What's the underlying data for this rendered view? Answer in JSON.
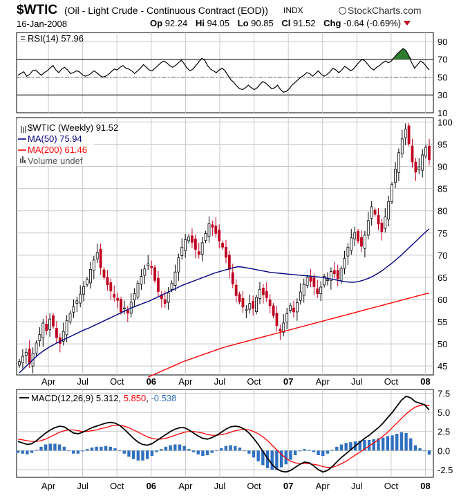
{
  "header": {
    "symbol": "$WTIC",
    "full_name": "(Oil - Light Crude - Continuous Contract (EOD))",
    "exchange": "INDX",
    "logo": "StockCharts.com",
    "date": "16-Jan-2008",
    "open_label": "Op",
    "open": "92.24",
    "high_label": "Hi",
    "high": "94.05",
    "low_label": "Lo",
    "low": "90.85",
    "close_label": "Cl",
    "close": "91.52",
    "change_label": "Chg",
    "change": "-0.64 (-0.69%)",
    "change_color": "#c00020"
  },
  "chart_data": [
    {
      "type": "line",
      "panel": "rsi",
      "legend": {
        "name": "RSI(14)",
        "value": "57.96"
      },
      "ylim": [
        10,
        100
      ],
      "ticks": [
        "90",
        "70",
        "50",
        "30",
        "10"
      ],
      "levels": [
        70,
        50,
        30
      ],
      "values": [
        52,
        54,
        56,
        51,
        53,
        57,
        58,
        55,
        52,
        55,
        57,
        60,
        63,
        58,
        55,
        59,
        61,
        58,
        54,
        55,
        57,
        56,
        53,
        51,
        52,
        54,
        57,
        55,
        52,
        50,
        51,
        53,
        56,
        59,
        58,
        61,
        63,
        60,
        59,
        57,
        54,
        57,
        60,
        64,
        61,
        58,
        57,
        60,
        63,
        66,
        68,
        66,
        63,
        61,
        63,
        66,
        69,
        65,
        60,
        57,
        59,
        63,
        67,
        71,
        69,
        63,
        59,
        57,
        55,
        58,
        60,
        57,
        52,
        47,
        44,
        40,
        37,
        36,
        38,
        41,
        38,
        36,
        38,
        42,
        45,
        43,
        40,
        37,
        38,
        41,
        36,
        33,
        34,
        37,
        41,
        44,
        47,
        50,
        52,
        55,
        54,
        51,
        54,
        57,
        53,
        51,
        53,
        56,
        60,
        58,
        55,
        58,
        62,
        60,
        57,
        59,
        63,
        67,
        70,
        68,
        64,
        60,
        58,
        61,
        63,
        66,
        68,
        66,
        68,
        72,
        76,
        79,
        82,
        80,
        74,
        66,
        60,
        64,
        68,
        66,
        62,
        58
      ],
      "colors": {
        "line": "#000000",
        "overbought_fill": "#2e7d32"
      }
    },
    {
      "type": "candlestick",
      "panel": "price",
      "legend": [
        {
          "name": "$WTIC (Weekly)",
          "value": "91.52",
          "color": "#000000"
        },
        {
          "name": "MA(50)",
          "value": "75.94",
          "color": "#000080"
        },
        {
          "name": "MA(200)",
          "value": "61.46",
          "color": "#ff0000"
        },
        {
          "name": "Volume",
          "value": "undef",
          "color": "#555555"
        }
      ],
      "ylim": [
        43,
        101
      ],
      "ticks": [
        "100",
        "95",
        "90",
        "85",
        "80",
        "75",
        "70",
        "65",
        "60",
        "55",
        "50",
        "45"
      ],
      "closes": [
        46.0,
        47.2,
        48.1,
        45.5,
        47.9,
        50.2,
        52.1,
        54.7,
        53.0,
        55.6,
        54.0,
        51.4,
        50.1,
        52.8,
        55.2,
        56.9,
        58.4,
        59.7,
        61.2,
        62.9,
        64.5,
        66.8,
        68.9,
        70.6,
        67.2,
        65.0,
        63.3,
        61.9,
        60.5,
        59.8,
        57.2,
        58.1,
        56.9,
        59.4,
        61.3,
        63.7,
        65.2,
        66.9,
        68.0,
        67.2,
        64.3,
        61.8,
        60.2,
        59.1,
        61.5,
        63.7,
        66.2,
        69.4,
        71.8,
        73.5,
        74.1,
        72.9,
        71.3,
        70.2,
        72.8,
        74.9,
        77.1,
        76.3,
        74.9,
        73.2,
        71.8,
        69.5,
        66.8,
        63.5,
        60.9,
        59.5,
        58.3,
        57.8,
        59.1,
        58.0,
        60.5,
        62.3,
        61.1,
        60.4,
        58.6,
        56.4,
        54.1,
        52.9,
        54.7,
        56.8,
        58.6,
        57.2,
        59.3,
        61.7,
        63.4,
        65.0,
        64.1,
        62.9,
        61.3,
        62.8,
        65.2,
        64.5,
        66.3,
        65.8,
        64.7,
        67.0,
        69.3,
        71.8,
        73.9,
        75.1,
        73.2,
        72.0,
        74.5,
        77.8,
        80.9,
        79.2,
        77.0,
        75.3,
        78.6,
        82.1,
        85.9,
        89.4,
        93.1,
        96.2,
        98.4,
        95.1,
        91.0,
        88.7,
        89.9,
        92.6,
        94.3,
        91.5
      ],
      "ma50": {
        "start": 0,
        "values": [
          43.5,
          44.5,
          45.5,
          46.5,
          47.5,
          48.3,
          49.0,
          49.6,
          50.2,
          50.7,
          51.2,
          51.7,
          52.2,
          52.7,
          53.2,
          53.6,
          54.1,
          54.6,
          55.1,
          55.6,
          56.1,
          56.6,
          57.1,
          57.6,
          58.1,
          58.5,
          58.9,
          59.3,
          59.7,
          60.2,
          60.7,
          61.2,
          61.7,
          62.2,
          62.7,
          63.2,
          63.6,
          64.0,
          64.4,
          64.8,
          65.2,
          65.6,
          66.0,
          66.3,
          66.6,
          66.9,
          67.2,
          67.4,
          67.3,
          67.1,
          66.9,
          66.7,
          66.5,
          66.3,
          66.1,
          66.0,
          65.9,
          65.8,
          65.7,
          65.6,
          65.5,
          65.4,
          65.3,
          65.2,
          65.1,
          65.0,
          64.8,
          64.6,
          64.4,
          64.2,
          64.0,
          63.9,
          63.9,
          64.1,
          64.4,
          64.8,
          65.3,
          65.9,
          66.6,
          67.4,
          68.2,
          69.1,
          70.0,
          71.0,
          72.0,
          73.0,
          74.0,
          75.0,
          75.94
        ]
      },
      "ma200": {
        "start": 38,
        "values": [
          42.5,
          43.0,
          43.5,
          44.0,
          44.5,
          45.0,
          45.5,
          46.0,
          46.4,
          46.8,
          47.2,
          47.6,
          48.0,
          48.4,
          48.8,
          49.2,
          49.5,
          49.8,
          50.1,
          50.4,
          50.7,
          51.0,
          51.3,
          51.6,
          51.9,
          52.2,
          52.5,
          52.8,
          53.1,
          53.4,
          53.7,
          54.0,
          54.3,
          54.6,
          54.9,
          55.2,
          55.5,
          55.8,
          56.1,
          56.4,
          56.7,
          57.0,
          57.3,
          57.6,
          57.9,
          58.2,
          58.5,
          58.8,
          59.1,
          59.4,
          59.7,
          60.0,
          60.3,
          60.6,
          60.9,
          61.2,
          61.46
        ]
      }
    },
    {
      "type": "line",
      "panel": "macd",
      "legend": [
        {
          "name": "MACD(12,26,9)",
          "value": "5.312",
          "color": "#000000"
        },
        {
          "name": "",
          "value": "5.850",
          "color": "#ff0000"
        },
        {
          "name": "",
          "value": "-0.538",
          "color": "#3070c0"
        }
      ],
      "ylim": [
        -3.5,
        8
      ],
      "ticks": [
        "7.5",
        "5.0",
        "2.5",
        "0.0",
        "-2.5"
      ],
      "macd": [
        1.2,
        1.0,
        0.8,
        0.9,
        1.3,
        1.8,
        2.3,
        2.7,
        3.0,
        3.2,
        3.1,
        2.7,
        2.3,
        2.2,
        2.4,
        2.7,
        3.0,
        3.2,
        3.4,
        3.6,
        3.7,
        3.6,
        3.3,
        2.8,
        2.2,
        1.6,
        1.1,
        0.8,
        0.7,
        0.9,
        1.3,
        1.7,
        2.1,
        2.5,
        2.8,
        3.0,
        3.0,
        2.7,
        2.3,
        1.9,
        1.6,
        1.5,
        1.7,
        2.0,
        2.4,
        2.8,
        3.1,
        3.2,
        3.1,
        2.8,
        2.3,
        1.6,
        0.8,
        -0.1,
        -1.0,
        -1.8,
        -2.4,
        -2.7,
        -2.8,
        -2.6,
        -2.2,
        -1.8,
        -1.5,
        -1.6,
        -2.0,
        -2.5,
        -2.8,
        -2.6,
        -2.1,
        -1.5,
        -0.9,
        -0.4,
        0.1,
        0.6,
        1.1,
        1.6,
        2.0,
        2.5,
        3.0,
        3.6,
        4.3,
        5.0,
        5.8,
        6.6,
        7.1,
        6.9,
        6.4,
        6.2,
        6.0,
        5.312
      ],
      "signal": [
        1.5,
        1.4,
        1.3,
        1.2,
        1.2,
        1.3,
        1.5,
        1.8,
        2.1,
        2.4,
        2.6,
        2.7,
        2.7,
        2.6,
        2.5,
        2.5,
        2.6,
        2.7,
        2.9,
        3.0,
        3.2,
        3.3,
        3.3,
        3.2,
        3.0,
        2.7,
        2.4,
        2.1,
        1.8,
        1.6,
        1.5,
        1.5,
        1.6,
        1.8,
        2.0,
        2.2,
        2.4,
        2.5,
        2.5,
        2.4,
        2.3,
        2.1,
        2.0,
        2.0,
        2.1,
        2.2,
        2.4,
        2.6,
        2.7,
        2.8,
        2.7,
        2.5,
        2.2,
        1.8,
        1.3,
        0.7,
        0.1,
        -0.5,
        -1.0,
        -1.4,
        -1.6,
        -1.7,
        -1.7,
        -1.7,
        -1.8,
        -1.9,
        -2.1,
        -2.2,
        -2.2,
        -2.0,
        -1.7,
        -1.4,
        -1.0,
        -0.6,
        -0.2,
        0.2,
        0.6,
        1.0,
        1.4,
        1.9,
        2.4,
        3.0,
        3.6,
        4.2,
        4.8,
        5.3,
        5.7,
        5.9,
        6.0,
        5.85
      ],
      "colors": {
        "macd": "#000000",
        "signal": "#ff0000",
        "histogram": "#3070c0"
      }
    }
  ],
  "x_axis": {
    "labels": [
      {
        "text": "Apr",
        "bold": false,
        "x_index": 10
      },
      {
        "text": "Jul",
        "bold": false,
        "x_index": 23
      },
      {
        "text": "Oct",
        "bold": false,
        "x_index": 36
      },
      {
        "text": "06",
        "bold": true,
        "x_index": 49
      },
      {
        "text": "Apr",
        "bold": false,
        "x_index": 62
      },
      {
        "text": "Jul",
        "bold": false,
        "x_index": 75
      },
      {
        "text": "Oct",
        "bold": false,
        "x_index": 88
      },
      {
        "text": "07",
        "bold": true,
        "x_index": 101
      },
      {
        "text": "Apr",
        "bold": false,
        "x_index": 114
      },
      {
        "text": "Jul",
        "bold": false,
        "x_index": 127
      },
      {
        "text": "Oct",
        "bold": false,
        "x_index": 140
      },
      {
        "text": "08",
        "bold": true,
        "x_index": 153
      }
    ],
    "total_weeks": 156
  }
}
